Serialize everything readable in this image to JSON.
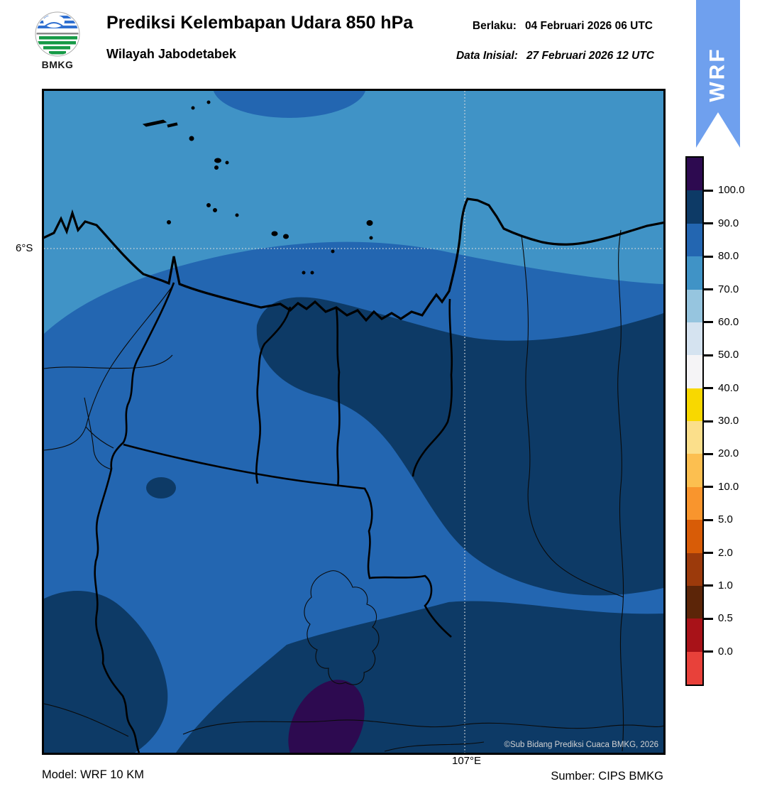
{
  "header": {
    "logo": {
      "text": "BMKG"
    },
    "title": "Prediksi Kelembapan Udara 850 hPa",
    "region_subtitle": "Wilayah Jabodetabek",
    "valid": {
      "label": "Berlaku:",
      "value": "04 Februari 2026 06 UTC"
    },
    "initial": {
      "label": "Data Inisial:",
      "value": "27 Februari 2026 12 UTC"
    },
    "ribbon": {
      "label": "WRF",
      "color": "#6FA0EE"
    }
  },
  "map": {
    "lat_tick": "6°S",
    "lon_tick": "107°E",
    "copyright": "©Sub Bidang Prediksi Cuaca BMKG, 2026",
    "palette": {
      "humidity_70_80": "#4093C6",
      "humidity_80_90": "#2366B1",
      "humidity_90_100": "#0D3A66",
      "humidity_above_100": "#2D0A50",
      "gridline": "#DCDCDC",
      "coast_and_borders": "#000000"
    }
  },
  "colorbar": {
    "tick_labels": [
      "100.0",
      "90.0",
      "80.0",
      "70.0",
      "60.0",
      "50.0",
      "40.0",
      "30.0",
      "20.0",
      "10.0",
      "5.0",
      "2.0",
      "1.0",
      "0.5",
      "0.0"
    ],
    "segments_top_to_bottom": [
      "#2D0A50",
      "#0D3A66",
      "#2366B1",
      "#4093C6",
      "#96C5DF",
      "#D5E3F0",
      "#F5F4F6",
      "#F8D800",
      "#FBDF8B",
      "#FCBF50",
      "#F9952D",
      "#D85C07",
      "#9C3A0B",
      "#5C2508",
      "#A81218",
      "#E8413A"
    ]
  },
  "footer": {
    "model": "Model: WRF 10 KM",
    "source": "Sumber: CIPS BMKG"
  },
  "chart_data": {
    "type": "heatmap",
    "title": "Prediksi Kelembapan Udara 850 hPa",
    "region": "Wilayah Jabodetabek",
    "valid_time": "04 Februari 2026 06 UTC",
    "initial_time": "27 Februari 2026 12 UTC",
    "model": "WRF 10 KM",
    "source": "CIPS BMKG",
    "legend_tick_values": [
      100.0,
      90.0,
      80.0,
      70.0,
      60.0,
      50.0,
      40.0,
      30.0,
      20.0,
      10.0,
      5.0,
      2.0,
      1.0,
      0.5,
      0.0
    ],
    "gridline_labels": {
      "latitude": "6°S",
      "longitude": "107°E"
    },
    "visible_value_zones": [
      {
        "colour_class": "70.0–80.0",
        "where": "sea band across the northern part of the map"
      },
      {
        "colour_class": "80.0–90.0",
        "where": "dominant background over most land areas and top-centre sea blob"
      },
      {
        "colour_class": "90.0–100.0",
        "where": "central band from Jakarta eastward to the map edge, bottom-left corner blob, broad southern belt, small oval spot west-centre"
      },
      {
        "colour_class": "above 100.0 tick (top colour class)",
        "where": "small dark-purple blob at the bottom centre"
      }
    ]
  }
}
